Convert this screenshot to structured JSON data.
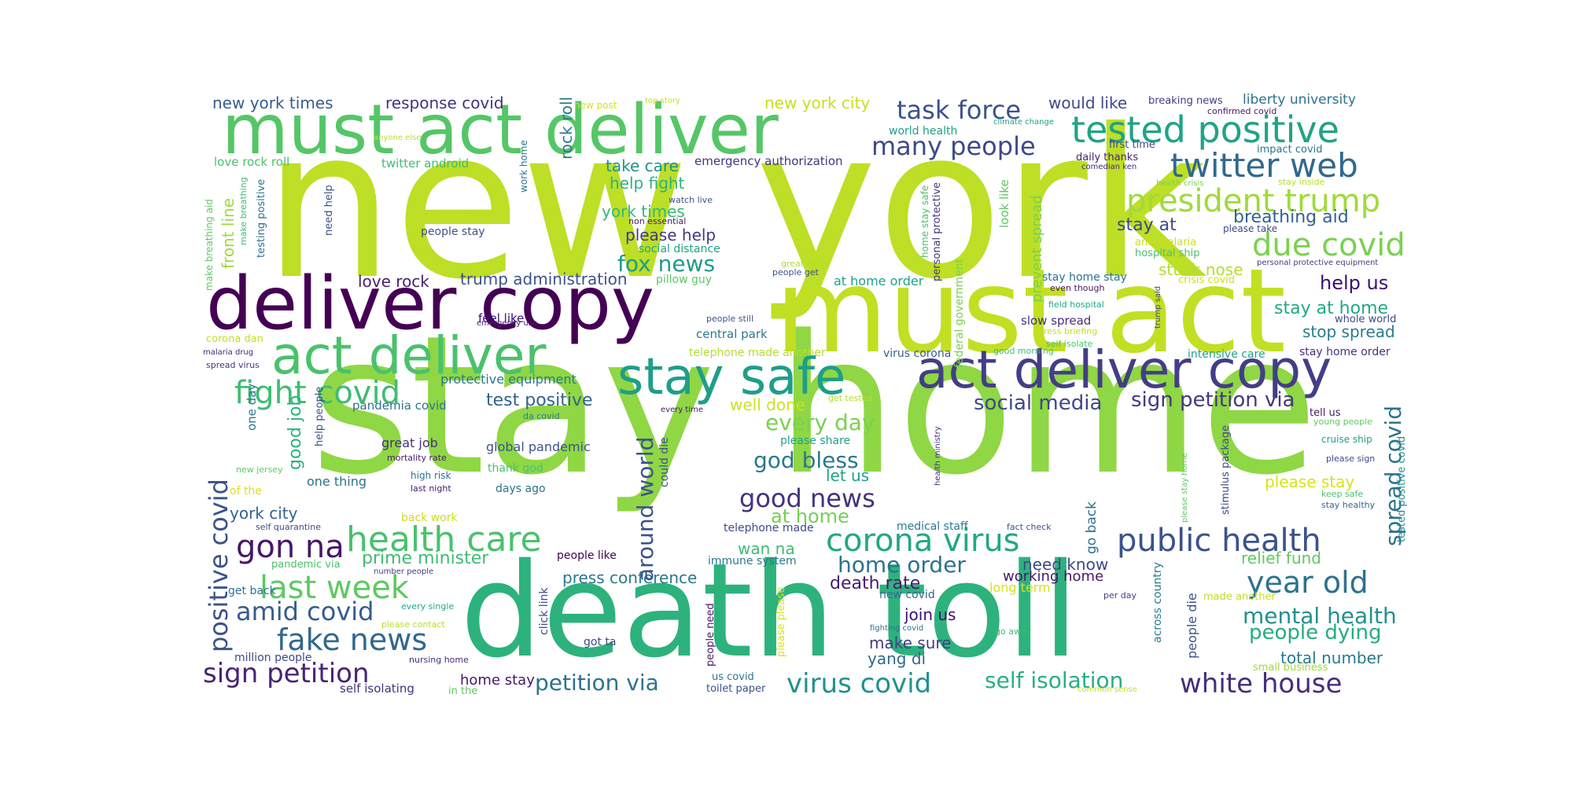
{
  "palette": [
    "#440154",
    "#46327e",
    "#365c8d",
    "#277f8e",
    "#1fa187",
    "#4ac16d",
    "#a0da39",
    "#c2df23",
    "#fde725"
  ],
  "words": [
    {
      "text": "stay home",
      "c": "#8fd744",
      "o": "h"
    },
    {
      "text": "new york",
      "c": "#bddf26",
      "o": "h"
    },
    {
      "text": "death toll",
      "c": "#2db27d",
      "o": "h"
    },
    {
      "text": "must act",
      "c": "#c2df23",
      "o": "h"
    },
    {
      "text": "deliver copy",
      "c": "#440154",
      "o": "h"
    },
    {
      "text": "must act deliver",
      "c": "#55c667",
      "o": "h"
    },
    {
      "text": "act deliver copy",
      "c": "#433e85",
      "o": "h"
    },
    {
      "text": "act deliver",
      "c": "#4ac16d",
      "o": "h"
    },
    {
      "text": "stay safe",
      "c": "#1f9e89",
      "o": "h"
    },
    {
      "text": "tested positive",
      "c": "#20a386",
      "o": "h"
    },
    {
      "text": "twitter web",
      "c": "#31688e",
      "o": "h"
    },
    {
      "text": "president trump",
      "c": "#a0da39",
      "o": "h"
    },
    {
      "text": "due covid",
      "c": "#7ad151",
      "o": "h"
    },
    {
      "text": "fight covid",
      "c": "#3fbc73",
      "o": "h"
    },
    {
      "text": "health care",
      "c": "#4ac16d",
      "o": "h"
    },
    {
      "text": "corona virus",
      "c": "#22a884",
      "o": "h"
    },
    {
      "text": "public health",
      "c": "#3b528b",
      "o": "h"
    },
    {
      "text": "gon na",
      "c": "#481769",
      "o": "h"
    },
    {
      "text": "last week",
      "c": "#5ec962",
      "o": "h"
    },
    {
      "text": "year old",
      "c": "#2c728e",
      "o": "h"
    },
    {
      "text": "fake news",
      "c": "#31688e",
      "o": "h"
    },
    {
      "text": "sign petition",
      "c": "#482475",
      "o": "h"
    },
    {
      "text": "virus covid",
      "c": "#21918c",
      "o": "h"
    },
    {
      "text": "white house",
      "c": "#472d7b",
      "o": "h"
    },
    {
      "text": "good news",
      "c": "#46327e",
      "o": "h"
    },
    {
      "text": "many people",
      "c": "#3e4989",
      "o": "h"
    },
    {
      "text": "task force",
      "c": "#3b528b",
      "o": "h"
    },
    {
      "text": "amid covid",
      "c": "#365c8d",
      "o": "h"
    },
    {
      "text": "self isolation",
      "c": "#29af7f",
      "o": "h"
    },
    {
      "text": "petition via",
      "c": "#2c728e",
      "o": "h"
    },
    {
      "text": "fox news",
      "c": "#1f9a8a",
      "o": "h"
    },
    {
      "text": "social media",
      "c": "#3e4989",
      "o": "h"
    },
    {
      "text": "sign petition via",
      "c": "#453781",
      "o": "h"
    },
    {
      "text": "mental health",
      "c": "#21918c",
      "o": "h"
    },
    {
      "text": "people dying",
      "c": "#25ac82",
      "o": "h"
    },
    {
      "text": "god bless",
      "c": "#2a788e",
      "o": "h"
    },
    {
      "text": "home order",
      "c": "#2c728e",
      "o": "h"
    },
    {
      "text": "every day",
      "c": "#7ad151",
      "o": "h"
    },
    {
      "text": "prime minister",
      "c": "#3fbc73",
      "o": "h"
    },
    {
      "text": "breathing aid",
      "c": "#34618d",
      "o": "h"
    },
    {
      "text": "help us",
      "c": "#3b0f70",
      "o": "h"
    },
    {
      "text": "stay at home",
      "c": "#22a884",
      "o": "h"
    },
    {
      "text": "stop spread",
      "c": "#287c8e",
      "o": "h"
    },
    {
      "text": "stay at",
      "c": "#3e4989",
      "o": "h"
    },
    {
      "text": "death rate",
      "c": "#481a6c",
      "o": "h"
    },
    {
      "text": "press conference",
      "c": "#2a788e",
      "o": "h"
    },
    {
      "text": "test positive",
      "c": "#33638d",
      "o": "h"
    },
    {
      "text": "at home",
      "c": "#73d056",
      "o": "h"
    },
    {
      "text": "love rock",
      "c": "#481f70",
      "o": "h"
    },
    {
      "text": "trump administration",
      "c": "#3b528b",
      "o": "h"
    },
    {
      "text": "please help",
      "c": "#453781",
      "o": "h"
    },
    {
      "text": "york times",
      "c": "#35b779",
      "o": "h"
    },
    {
      "text": "help fight",
      "c": "#2db27d",
      "o": "h"
    },
    {
      "text": "take care",
      "c": "#21918c",
      "o": "h"
    },
    {
      "text": "new york times",
      "c": "#365c8d",
      "o": "h"
    },
    {
      "text": "response covid",
      "c": "#46327e",
      "o": "h"
    },
    {
      "text": "new york city",
      "c": "#c8e020",
      "o": "h"
    },
    {
      "text": "would like",
      "c": "#3e4989",
      "o": "h"
    },
    {
      "text": "liberty university",
      "c": "#2c728e",
      "o": "h"
    },
    {
      "text": "stuck nose",
      "c": "#b5de2b",
      "o": "h"
    },
    {
      "text": "make sure",
      "c": "#433e85",
      "o": "h"
    },
    {
      "text": "join us",
      "c": "#3b0f70",
      "o": "h"
    },
    {
      "text": "yang di",
      "c": "#31688e",
      "o": "h"
    },
    {
      "text": "total number",
      "c": "#2a788e",
      "o": "h"
    },
    {
      "text": "relief fund",
      "c": "#5ec962",
      "o": "h"
    },
    {
      "text": "need know",
      "c": "#3f4788",
      "o": "h"
    },
    {
      "text": "working home",
      "c": "#481769",
      "o": "h"
    },
    {
      "text": "york city",
      "c": "#34618d",
      "o": "h"
    },
    {
      "text": "let us",
      "c": "#1fa088",
      "o": "h"
    },
    {
      "text": "wan na",
      "c": "#3fbc73",
      "o": "h"
    },
    {
      "text": "well done",
      "c": "#d0e11c",
      "o": "h"
    },
    {
      "text": "please stay",
      "c": "#d8e219",
      "o": "h"
    },
    {
      "text": "great job",
      "c": "#472f7d",
      "o": "h"
    },
    {
      "text": "global pandemic",
      "c": "#3b528b",
      "o": "h"
    },
    {
      "text": "one thing",
      "c": "#2c728e",
      "o": "h"
    },
    {
      "text": "protective equipment",
      "c": "#2a788e",
      "o": "h"
    },
    {
      "text": "pandemia covid",
      "c": "#2c728e",
      "o": "h"
    },
    {
      "text": "emergency authorization",
      "c": "#46327e",
      "o": "h"
    },
    {
      "text": "twitter android",
      "c": "#3fbc73",
      "o": "h"
    },
    {
      "text": "love rock roll",
      "c": "#4ac16d",
      "o": "h"
    },
    {
      "text": "world health",
      "c": "#1fa187",
      "o": "h"
    },
    {
      "text": "daily thanks",
      "c": "#482071",
      "o": "h"
    },
    {
      "text": "first time",
      "c": "#3e4989",
      "o": "h"
    },
    {
      "text": "impact covid",
      "c": "#2a788e",
      "o": "h"
    },
    {
      "text": "breaking news",
      "c": "#433e85",
      "o": "h"
    },
    {
      "text": "confirmed covid",
      "c": "#481769",
      "o": "h"
    },
    {
      "text": "climate change",
      "c": "#1fa187",
      "o": "h"
    },
    {
      "text": "comedian ken",
      "c": "#482878",
      "o": "h"
    },
    {
      "text": "health crisis",
      "c": "#7ad151",
      "o": "h"
    },
    {
      "text": "stay inside",
      "c": "#b5de2b",
      "o": "h"
    },
    {
      "text": "please take",
      "c": "#3e4989",
      "o": "h"
    },
    {
      "text": "anti malaria",
      "c": "#c8e020",
      "o": "h"
    },
    {
      "text": "hospital ship",
      "c": "#4ac16d",
      "o": "h"
    },
    {
      "text": "crisis covid",
      "c": "#d0e11c",
      "o": "h"
    },
    {
      "text": "personal protective equipment",
      "c": "#433e85",
      "o": "h"
    },
    {
      "text": "stay home stay",
      "c": "#2c728e",
      "o": "h"
    },
    {
      "text": "even though",
      "c": "#481769",
      "o": "h"
    },
    {
      "text": "field hospital",
      "c": "#22a884",
      "o": "h"
    },
    {
      "text": "slow spread",
      "c": "#472d7b",
      "o": "h"
    },
    {
      "text": "press briefing",
      "c": "#c2df23",
      "o": "h"
    },
    {
      "text": "self isolate",
      "c": "#4ac16d",
      "o": "h"
    },
    {
      "text": "good morning",
      "c": "#3fbc73",
      "o": "h"
    },
    {
      "text": "intensive care",
      "c": "#20a386",
      "o": "h"
    },
    {
      "text": "stay home order",
      "c": "#46327e",
      "o": "h"
    },
    {
      "text": "people stay",
      "c": "#3b528b",
      "o": "h"
    },
    {
      "text": "social distance",
      "c": "#20a386",
      "o": "h"
    },
    {
      "text": "great news",
      "c": "#b5de2b",
      "o": "h"
    },
    {
      "text": "people get",
      "c": "#3b528b",
      "o": "h"
    },
    {
      "text": "pillow guy",
      "c": "#5ec962",
      "o": "h"
    },
    {
      "text": "at home order",
      "c": "#1fa187",
      "o": "h"
    },
    {
      "text": "watch live",
      "c": "#3b528b",
      "o": "h"
    },
    {
      "text": "non essential",
      "c": "#481769",
      "o": "h"
    },
    {
      "text": "new post",
      "c": "#d8e219",
      "o": "h"
    },
    {
      "text": "top story",
      "c": "#c2df23",
      "o": "h"
    },
    {
      "text": "anyone else",
      "c": "#c8e020",
      "o": "h"
    },
    {
      "text": "people still",
      "c": "#3b528b",
      "o": "h"
    },
    {
      "text": "central park",
      "c": "#2a788e",
      "o": "h"
    },
    {
      "text": "telephone made another",
      "c": "#b5de2b",
      "o": "h"
    },
    {
      "text": "virus corona",
      "c": "#365c8d",
      "o": "h"
    },
    {
      "text": "feel like",
      "c": "#3b0f70",
      "o": "h"
    },
    {
      "text": "emergency use",
      "c": "#482475",
      "o": "h"
    },
    {
      "text": "corona dan",
      "c": "#c2df23",
      "o": "h"
    },
    {
      "text": "malaria drug",
      "c": "#482475",
      "o": "h"
    },
    {
      "text": "spread virus",
      "c": "#46327e",
      "o": "h"
    },
    {
      "text": "get tested",
      "c": "#b5de2b",
      "o": "h"
    },
    {
      "text": "every time",
      "c": "#481769",
      "o": "h"
    },
    {
      "text": "da covid",
      "c": "#2a788e",
      "o": "h"
    },
    {
      "text": "please share",
      "c": "#1fa187",
      "o": "h"
    },
    {
      "text": "mortality rate",
      "c": "#481a6c",
      "o": "h"
    },
    {
      "text": "high risk",
      "c": "#2c728e",
      "o": "h"
    },
    {
      "text": "last night",
      "c": "#481769",
      "o": "h"
    },
    {
      "text": "thank god",
      "c": "#4ac16d",
      "o": "h"
    },
    {
      "text": "days ago",
      "c": "#2c728e",
      "o": "h"
    },
    {
      "text": "new jersey",
      "c": "#5ec962",
      "o": "h"
    },
    {
      "text": "of the",
      "c": "#d8e219",
      "o": "h"
    },
    {
      "text": "self quarantine",
      "c": "#3e4989",
      "o": "h"
    },
    {
      "text": "back work",
      "c": "#c8e020",
      "o": "h"
    },
    {
      "text": "pandemic via",
      "c": "#4ac16d",
      "o": "h"
    },
    {
      "text": "number people",
      "c": "#433e85",
      "o": "h"
    },
    {
      "text": "get back",
      "c": "#2c728e",
      "o": "h"
    },
    {
      "text": "every single",
      "c": "#22a884",
      "o": "h"
    },
    {
      "text": "please contact",
      "c": "#b5de2b",
      "o": "h"
    },
    {
      "text": "million people",
      "c": "#3e4989",
      "o": "h"
    },
    {
      "text": "nursing home",
      "c": "#472d7b",
      "o": "h"
    },
    {
      "text": "self isolating",
      "c": "#46327e",
      "o": "h"
    },
    {
      "text": "in the",
      "c": "#5ec962",
      "o": "h"
    },
    {
      "text": "home stay",
      "c": "#481769",
      "o": "h"
    },
    {
      "text": "toilet paper",
      "c": "#3b528b",
      "o": "h"
    },
    {
      "text": "us covid",
      "c": "#2a788e",
      "o": "h"
    },
    {
      "text": "got ta",
      "c": "#3e4989",
      "o": "h"
    },
    {
      "text": "people like",
      "c": "#440154",
      "o": "h"
    },
    {
      "text": "immune system",
      "c": "#2a788e",
      "o": "h"
    },
    {
      "text": "telephone made",
      "c": "#3e4989",
      "o": "h"
    },
    {
      "text": "medical staff",
      "c": "#2a788e",
      "o": "h"
    },
    {
      "text": "fact check",
      "c": "#3b528b",
      "o": "h"
    },
    {
      "text": "new covid",
      "c": "#31688e",
      "o": "h"
    },
    {
      "text": "long term",
      "c": "#d8e219",
      "o": "h"
    },
    {
      "text": "fighting covid",
      "c": "#2c728e",
      "o": "h"
    },
    {
      "text": "go away",
      "c": "#3fbc73",
      "o": "h"
    },
    {
      "text": "per day",
      "c": "#433e85",
      "o": "h"
    },
    {
      "text": "made another",
      "c": "#c2df23",
      "o": "h"
    },
    {
      "text": "small business",
      "c": "#a0da39",
      "o": "h"
    },
    {
      "text": "common sense",
      "c": "#c2df23",
      "o": "h"
    },
    {
      "text": "tell us",
      "c": "#481769",
      "o": "h"
    },
    {
      "text": "young people",
      "c": "#5ec962",
      "o": "h"
    },
    {
      "text": "cruise ship",
      "c": "#1fa187",
      "o": "h"
    },
    {
      "text": "please sign",
      "c": "#3e4989",
      "o": "h"
    },
    {
      "text": "keep safe",
      "c": "#4ac16d",
      "o": "h"
    },
    {
      "text": "stay healthy",
      "c": "#31688e",
      "o": "h"
    },
    {
      "text": "whole world",
      "c": "#3e4989",
      "o": "h"
    },
    {
      "text": "positive covid",
      "c": "#3b528b",
      "o": "v"
    },
    {
      "text": "around world",
      "c": "#3b528b",
      "o": "v"
    },
    {
      "text": "spread covid",
      "c": "#2c728e",
      "o": "v"
    },
    {
      "text": "good job",
      "c": "#2db27d",
      "o": "v"
    },
    {
      "text": "front line",
      "c": "#a0da39",
      "o": "v"
    },
    {
      "text": "make breathing aid",
      "c": "#5ec962",
      "o": "v"
    },
    {
      "text": "make breathing",
      "c": "#3fbc73",
      "o": "v"
    },
    {
      "text": "testing positive",
      "c": "#2c728e",
      "o": "v"
    },
    {
      "text": "need help",
      "c": "#3b528b",
      "o": "v"
    },
    {
      "text": "work home",
      "c": "#2a788e",
      "o": "v"
    },
    {
      "text": "rock roll",
      "c": "#2a788e",
      "o": "v"
    },
    {
      "text": "prevent spread",
      "c": "#7ad151",
      "o": "v"
    },
    {
      "text": "look like",
      "c": "#5ec962",
      "o": "v"
    },
    {
      "text": "home stay safe",
      "c": "#4ac16d",
      "o": "v"
    },
    {
      "text": "personal protective",
      "c": "#46327e",
      "o": "v"
    },
    {
      "text": "federal government",
      "c": "#7ad151",
      "o": "v"
    },
    {
      "text": "trump said",
      "c": "#3e4989",
      "o": "v"
    },
    {
      "text": "one day",
      "c": "#2a788e",
      "o": "v"
    },
    {
      "text": "help people",
      "c": "#3b528b",
      "o": "v"
    },
    {
      "text": "could die",
      "c": "#3b528b",
      "o": "v"
    },
    {
      "text": "click link",
      "c": "#3e4989",
      "o": "v"
    },
    {
      "text": "people need",
      "c": "#481769",
      "o": "v"
    },
    {
      "text": "please please",
      "c": "#d8e219",
      "o": "v"
    },
    {
      "text": "go back",
      "c": "#2c728e",
      "o": "v"
    },
    {
      "text": "people die",
      "c": "#3b528b",
      "o": "v"
    },
    {
      "text": "across country",
      "c": "#2a788e",
      "o": "v"
    },
    {
      "text": "health ministry",
      "c": "#46327e",
      "o": "v"
    },
    {
      "text": "please stay home",
      "c": "#5ec962",
      "o": "v"
    },
    {
      "text": "stimulus package",
      "c": "#3e4989",
      "o": "v"
    },
    {
      "text": "tested positive covid",
      "c": "#21918c",
      "o": "v"
    }
  ]
}
